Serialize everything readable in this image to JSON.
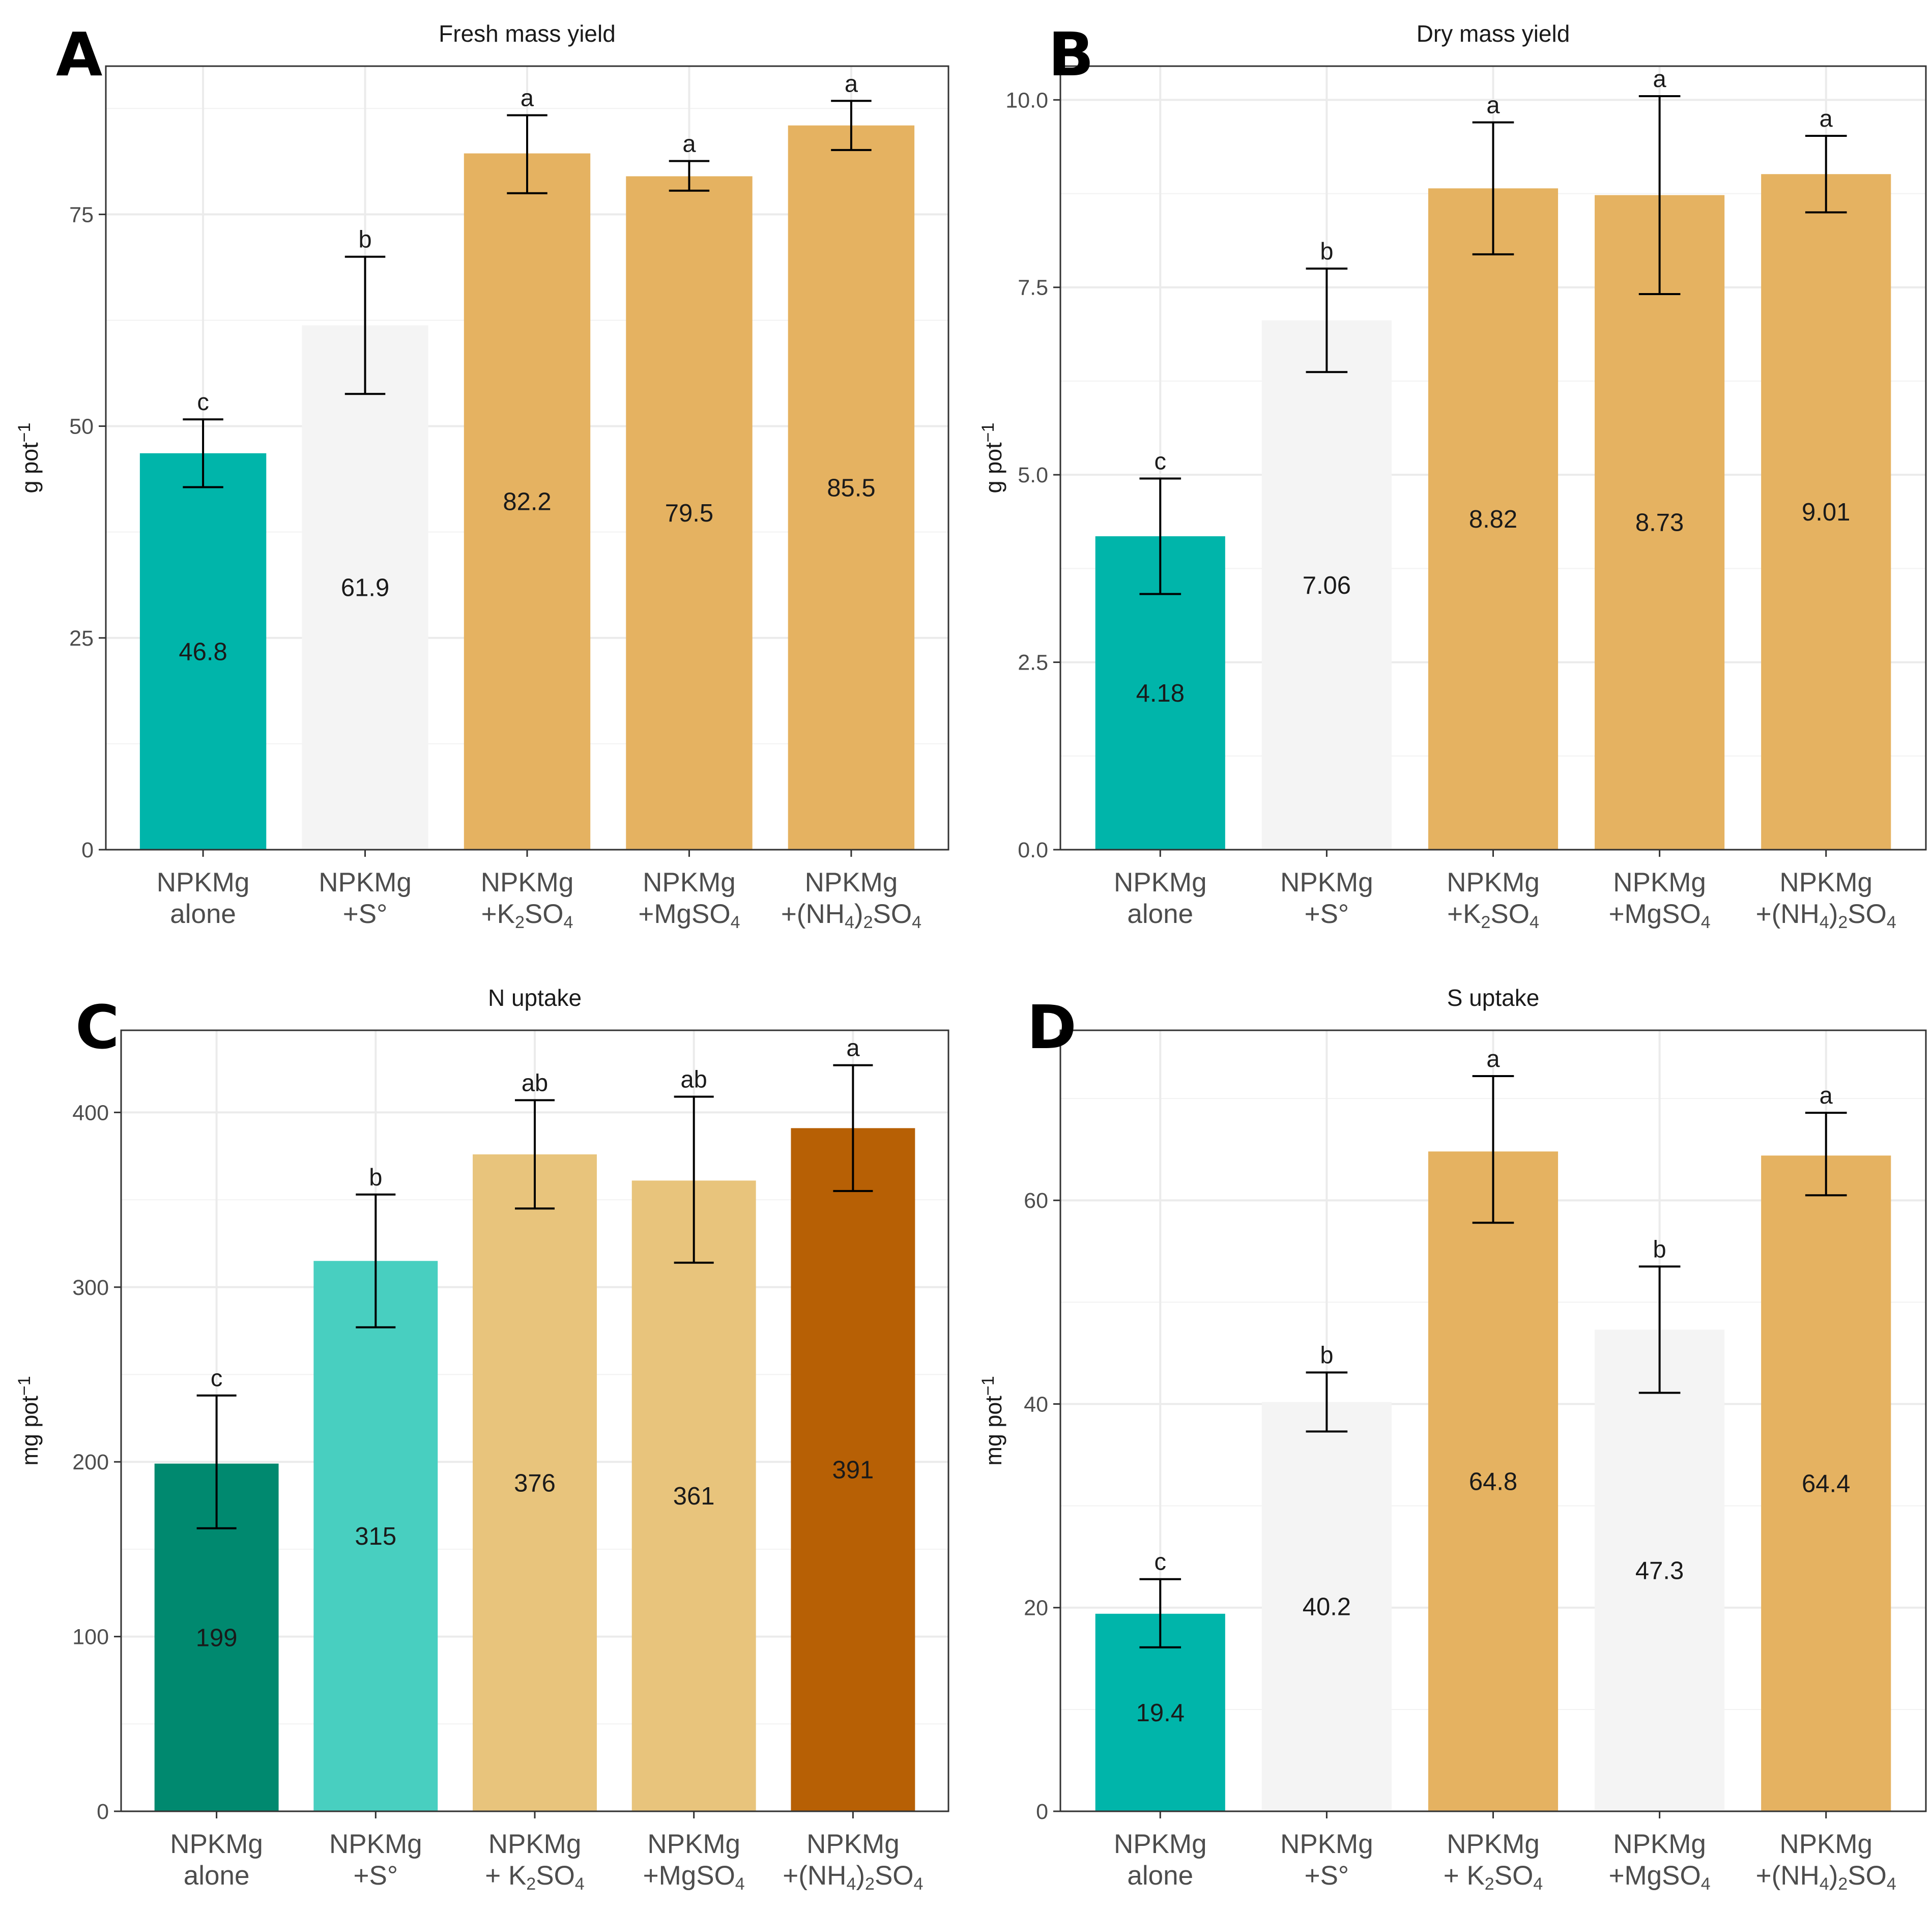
{
  "chart_data": [
    {
      "type": "bar",
      "panel": "A",
      "title": "Fresh mass yield",
      "ylabel": "g pot",
      "ylabel_sup": "−1",
      "ylim": [
        0,
        92.5
      ],
      "yticks": [
        0,
        25,
        50,
        75
      ],
      "ytick_labels": [
        "0",
        "25",
        "50",
        "75"
      ],
      "minor_gridlines": [
        12.5,
        37.5,
        62.5,
        87.5
      ],
      "categories": [
        [
          {
            "t": "NPKMg"
          },
          {
            "t": "alone"
          }
        ],
        [
          {
            "t": "NPKMg"
          },
          {
            "t": "+S°"
          }
        ],
        [
          {
            "t": "NPKMg"
          },
          {
            "t": "+K"
          },
          {
            "t": "2",
            "s": "sub"
          },
          {
            "t": "SO"
          },
          {
            "t": "4",
            "s": "sub"
          }
        ],
        [
          {
            "t": "NPKMg"
          },
          {
            "t": "+MgSO"
          },
          {
            "t": "4",
            "s": "sub"
          }
        ],
        [
          {
            "t": "NPKMg"
          },
          {
            "t": "+(NH"
          },
          {
            "t": "4",
            "s": "sub"
          },
          {
            "t": ")"
          },
          {
            "t": "2",
            "s": "sub"
          },
          {
            "t": "SO"
          },
          {
            "t": "4",
            "s": "sub"
          }
        ]
      ],
      "values": [
        46.8,
        61.9,
        82.2,
        79.5,
        85.5
      ],
      "value_labels": [
        "46.8",
        "61.9",
        "82.2",
        "79.5",
        "85.5"
      ],
      "error_low": [
        42.8,
        53.8,
        77.5,
        77.8,
        82.6
      ],
      "error_high": [
        50.8,
        70.0,
        86.7,
        81.3,
        88.4
      ],
      "significance": [
        "c",
        "b",
        "a",
        "a",
        "a"
      ],
      "colors": [
        "#00b5aa",
        "#f4f4f4",
        "#e5b261",
        "#e5b261",
        "#e5b261"
      ]
    },
    {
      "type": "bar",
      "panel": "B",
      "title": "Dry mass yield",
      "ylabel": "g pot",
      "ylabel_sup": "−1",
      "ylim": [
        0,
        10.45
      ],
      "yticks": [
        0,
        2.5,
        5,
        7.5,
        10
      ],
      "ytick_labels": [
        "0.0",
        "2.5",
        "5.0",
        "7.5",
        "10.0"
      ],
      "minor_gridlines": [
        1.25,
        3.75,
        6.25,
        8.75
      ],
      "categories": [
        [
          {
            "t": "NPKMg"
          },
          {
            "t": "alone"
          }
        ],
        [
          {
            "t": "NPKMg"
          },
          {
            "t": "+S°"
          }
        ],
        [
          {
            "t": "NPKMg"
          },
          {
            "t": "+K"
          },
          {
            "t": "2",
            "s": "sub"
          },
          {
            "t": "SO"
          },
          {
            "t": "4",
            "s": "sub"
          }
        ],
        [
          {
            "t": "NPKMg"
          },
          {
            "t": "+MgSO"
          },
          {
            "t": "4",
            "s": "sub"
          }
        ],
        [
          {
            "t": "NPKMg"
          },
          {
            "t": "+(NH"
          },
          {
            "t": "4",
            "s": "sub"
          },
          {
            "t": ")"
          },
          {
            "t": "2",
            "s": "sub"
          },
          {
            "t": "SO"
          },
          {
            "t": "4",
            "s": "sub"
          }
        ]
      ],
      "values": [
        4.18,
        7.06,
        8.82,
        8.73,
        9.01
      ],
      "value_labels": [
        "4.18",
        "7.06",
        "8.82",
        "8.73",
        "9.01"
      ],
      "error_low": [
        3.41,
        6.37,
        7.94,
        7.41,
        8.5
      ],
      "error_high": [
        4.95,
        7.75,
        9.7,
        10.05,
        9.52
      ],
      "significance": [
        "c",
        "b",
        "a",
        "a",
        "a"
      ],
      "colors": [
        "#00b5aa",
        "#f4f4f4",
        "#e5b261",
        "#e5b261",
        "#e5b261"
      ]
    },
    {
      "type": "bar",
      "panel": "C",
      "title": "N uptake",
      "ylabel": "mg pot",
      "ylabel_sup": "−1",
      "ylim": [
        0,
        447
      ],
      "yticks": [
        0,
        100,
        200,
        300,
        400
      ],
      "ytick_labels": [
        "0",
        "100",
        "200",
        "300",
        "400"
      ],
      "minor_gridlines": [
        50,
        150,
        250,
        350
      ],
      "categories": [
        [
          {
            "t": "NPKMg"
          },
          {
            "t": "alone"
          }
        ],
        [
          {
            "t": "NPKMg"
          },
          {
            "t": "+S°"
          }
        ],
        [
          {
            "t": "NPKMg"
          },
          {
            "t": "+ K"
          },
          {
            "t": "2",
            "s": "sub"
          },
          {
            "t": "SO"
          },
          {
            "t": "4",
            "s": "sub"
          }
        ],
        [
          {
            "t": "NPKMg"
          },
          {
            "t": "+MgSO"
          },
          {
            "t": "4",
            "s": "sub"
          }
        ],
        [
          {
            "t": "NPKMg"
          },
          {
            "t": "+(NH"
          },
          {
            "t": "4",
            "s": "sub"
          },
          {
            "t": ")"
          },
          {
            "t": "2",
            "s": "sub"
          },
          {
            "t": "SO"
          },
          {
            "t": "4",
            "s": "sub"
          }
        ]
      ],
      "values": [
        199,
        315,
        376,
        361,
        391
      ],
      "value_labels": [
        "199",
        "315",
        "376",
        "361",
        "391"
      ],
      "error_low": [
        162,
        277,
        345,
        314,
        355
      ],
      "error_high": [
        238,
        353,
        407,
        409,
        427
      ],
      "significance": [
        "c",
        "b",
        "ab",
        "ab",
        "a"
      ],
      "colors": [
        "#00896f",
        "#48cfc0",
        "#e8c47c",
        "#e8c47c",
        "#b76005"
      ]
    },
    {
      "type": "bar",
      "panel": "D",
      "title": "S uptake",
      "ylabel": "mg pot",
      "ylabel_sup": "−1",
      "ylim": [
        0,
        76.7
      ],
      "yticks": [
        0,
        20,
        40,
        60
      ],
      "ytick_labels": [
        "0",
        "20",
        "40",
        "60"
      ],
      "minor_gridlines": [
        10,
        30,
        50,
        70
      ],
      "categories": [
        [
          {
            "t": "NPKMg"
          },
          {
            "t": "alone"
          }
        ],
        [
          {
            "t": "NPKMg"
          },
          {
            "t": "+S°"
          }
        ],
        [
          {
            "t": "NPKMg"
          },
          {
            "t": "+ K"
          },
          {
            "t": "2",
            "s": "sub"
          },
          {
            "t": "SO"
          },
          {
            "t": "4",
            "s": "sub"
          }
        ],
        [
          {
            "t": "NPKMg"
          },
          {
            "t": "+MgSO"
          },
          {
            "t": "4",
            "s": "sub"
          }
        ],
        [
          {
            "t": "NPKMg"
          },
          {
            "t": "+(NH"
          },
          {
            "t": "4",
            "s": "sub"
          },
          {
            "t": ")"
          },
          {
            "t": "2",
            "s": "sub"
          },
          {
            "t": "SO"
          },
          {
            "t": "4",
            "s": "sub"
          }
        ]
      ],
      "values": [
        19.4,
        40.2,
        64.8,
        47.3,
        64.4
      ],
      "value_labels": [
        "19.4",
        "40.2",
        "64.8",
        "47.3",
        "64.4"
      ],
      "error_low": [
        16.1,
        37.3,
        57.8,
        41.1,
        60.5
      ],
      "error_high": [
        22.8,
        43.1,
        72.2,
        53.5,
        68.6
      ],
      "significance": [
        "c",
        "b",
        "a",
        "b",
        "a"
      ],
      "colors": [
        "#00b5aa",
        "#f4f4f4",
        "#e5b261",
        "#f4f4f4",
        "#e5b261"
      ]
    }
  ]
}
